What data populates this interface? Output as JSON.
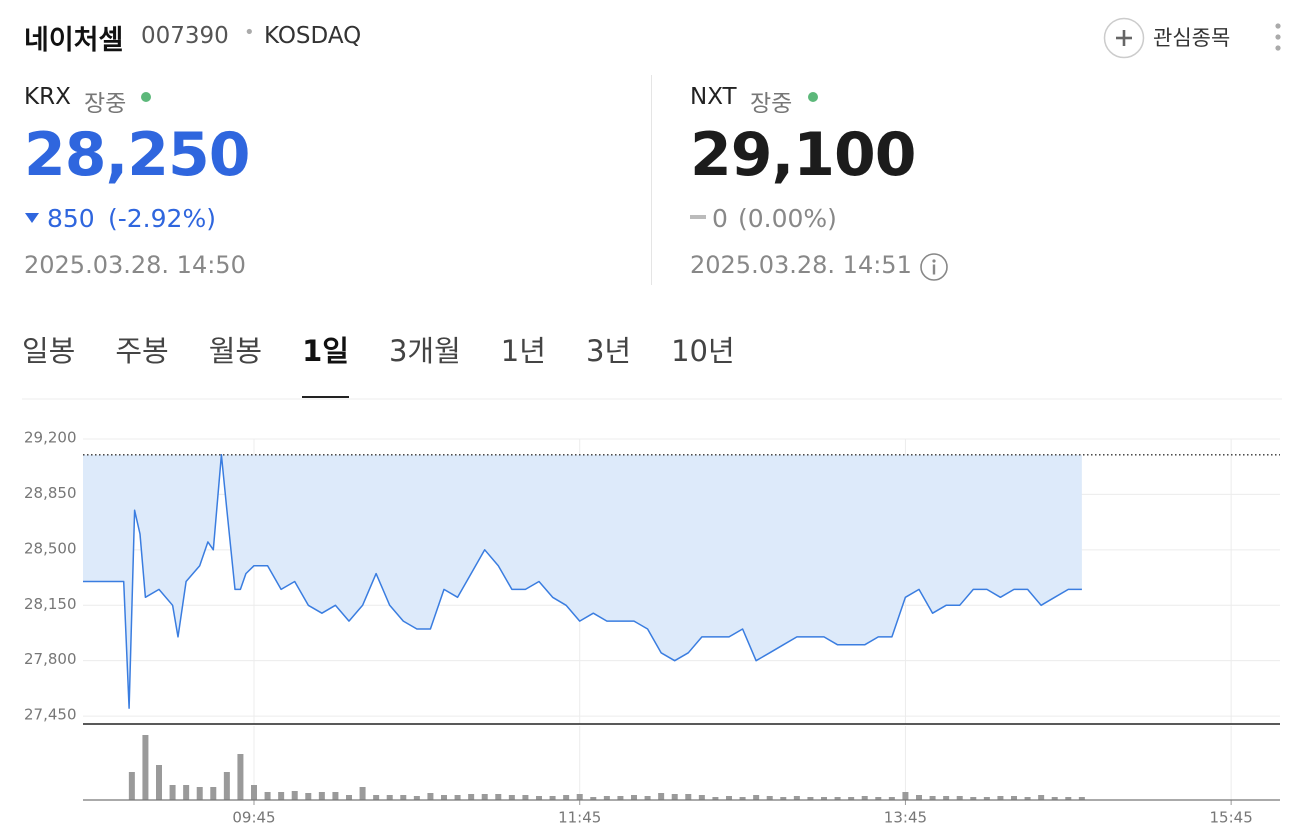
{
  "header": {
    "name": "네이처셀",
    "code": "007390",
    "separator": "•",
    "market": "KOSDAQ",
    "watch_button": "관심종목"
  },
  "quotes": [
    {
      "exchange": "KRX",
      "status": "장중",
      "price": "28,250",
      "change": "850",
      "change_pct": "(-2.92%)",
      "time": "2025.03.28. 14:50"
    },
    {
      "exchange": "NXT",
      "status": "장중",
      "price": "29,100",
      "change": "0",
      "change_pct": "(0.00%)",
      "time": "2025.03.28. 14:51"
    }
  ],
  "tabs": [
    "일봉",
    "주봉",
    "월봉",
    "1일",
    "3개월",
    "1년",
    "3년",
    "10년"
  ],
  "active_tab": 3,
  "chart_data": [
    {
      "type": "line",
      "x": [
        "08:42",
        "08:57",
        "08:59",
        "09:01",
        "09:03",
        "09:05",
        "09:10",
        "09:15",
        "09:17",
        "09:20",
        "09:25",
        "09:28",
        "09:30",
        "09:33",
        "09:35",
        "09:38",
        "09:40",
        "09:42",
        "09:45",
        "09:50",
        "09:55",
        "10:00",
        "10:05",
        "10:10",
        "10:15",
        "10:20",
        "10:25",
        "10:30",
        "10:35",
        "10:40",
        "10:45",
        "10:50",
        "10:55",
        "11:00",
        "11:05",
        "11:10",
        "11:15",
        "11:20",
        "11:25",
        "11:30",
        "11:35",
        "11:40",
        "11:45",
        "11:50",
        "11:55",
        "12:00",
        "12:05",
        "12:10",
        "12:15",
        "12:20",
        "12:25",
        "12:30",
        "12:35",
        "12:40",
        "12:45",
        "12:50",
        "12:55",
        "13:00",
        "13:05",
        "13:10",
        "13:15",
        "13:20",
        "13:25",
        "13:30",
        "13:35",
        "13:40",
        "13:45",
        "13:50",
        "13:55",
        "14:00",
        "14:05",
        "14:10",
        "14:15",
        "14:20",
        "14:25",
        "14:30",
        "14:35",
        "14:40",
        "14:45",
        "14:50"
      ],
      "values": [
        28300,
        28300,
        27500,
        28750,
        28600,
        28200,
        28250,
        28150,
        27950,
        28300,
        28400,
        28550,
        28500,
        29100,
        28750,
        28250,
        28250,
        28350,
        28400,
        28400,
        28250,
        28300,
        28150,
        28100,
        28150,
        28050,
        28150,
        28350,
        28150,
        28050,
        28000,
        28000,
        28250,
        28200,
        28350,
        28500,
        28400,
        28250,
        28250,
        28300,
        28200,
        28150,
        28050,
        28100,
        28050,
        28050,
        28050,
        28000,
        27850,
        27800,
        27850,
        27950,
        27950,
        27950,
        28000,
        27800,
        27850,
        27900,
        27950,
        27950,
        27950,
        27900,
        27900,
        27900,
        27950,
        27950,
        28200,
        28250,
        28100,
        28150,
        28150,
        28250,
        28250,
        28200,
        28250,
        28250,
        28150,
        28200,
        28250,
        28250
      ],
      "color": "#3a7de0",
      "fill_color": "#ddeafa",
      "reference_value": 29100,
      "reference_color": "#333",
      "xlim": [
        "08:42",
        "16:03"
      ],
      "xticks": [
        "09:45",
        "11:45",
        "13:45",
        "15:45"
      ],
      "ylim": [
        27400,
        29200
      ],
      "yticks": [
        {
          "value": 29200,
          "label": "29,200"
        },
        {
          "value": 28850,
          "label": "28,850"
        },
        {
          "value": 28500,
          "label": "28,500"
        },
        {
          "value": 28150,
          "label": "28,150"
        },
        {
          "value": 27800,
          "label": "27,800"
        },
        {
          "value": 27450,
          "label": "27,450"
        }
      ],
      "grid": true
    },
    {
      "type": "bar",
      "x": [
        "09:00",
        "09:05",
        "09:10",
        "09:15",
        "09:20",
        "09:25",
        "09:30",
        "09:35",
        "09:40",
        "09:45",
        "09:50",
        "09:55",
        "10:00",
        "10:05",
        "10:10",
        "10:15",
        "10:20",
        "10:25",
        "10:30",
        "10:35",
        "10:40",
        "10:45",
        "10:50",
        "10:55",
        "11:00",
        "11:05",
        "11:10",
        "11:15",
        "11:20",
        "11:25",
        "11:30",
        "11:35",
        "11:40",
        "11:45",
        "11:50",
        "11:55",
        "12:00",
        "12:05",
        "12:10",
        "12:15",
        "12:20",
        "12:25",
        "12:30",
        "12:35",
        "12:40",
        "12:45",
        "12:50",
        "12:55",
        "13:00",
        "13:05",
        "13:10",
        "13:15",
        "13:20",
        "13:25",
        "13:30",
        "13:35",
        "13:40",
        "13:45",
        "13:50",
        "13:55",
        "14:00",
        "14:05",
        "14:10",
        "14:15",
        "14:20",
        "14:25",
        "14:30",
        "14:35",
        "14:40",
        "14:45",
        "14:50"
      ],
      "values": [
        28,
        65,
        35,
        15,
        15,
        13,
        13,
        28,
        46,
        15,
        8,
        8,
        9,
        7,
        8,
        8,
        5,
        13,
        5,
        5,
        5,
        4,
        7,
        5,
        5,
        6,
        6,
        6,
        5,
        5,
        4,
        4,
        5,
        6,
        3,
        4,
        4,
        5,
        4,
        7,
        6,
        6,
        5,
        3,
        4,
        3,
        5,
        4,
        3,
        4,
        3,
        3,
        3,
        3,
        4,
        3,
        3,
        8,
        5,
        4,
        4,
        4,
        3,
        3,
        4,
        4,
        3,
        5,
        3,
        3,
        3
      ],
      "color": "#9a9a9a",
      "ylim": [
        0,
        70
      ]
    }
  ]
}
